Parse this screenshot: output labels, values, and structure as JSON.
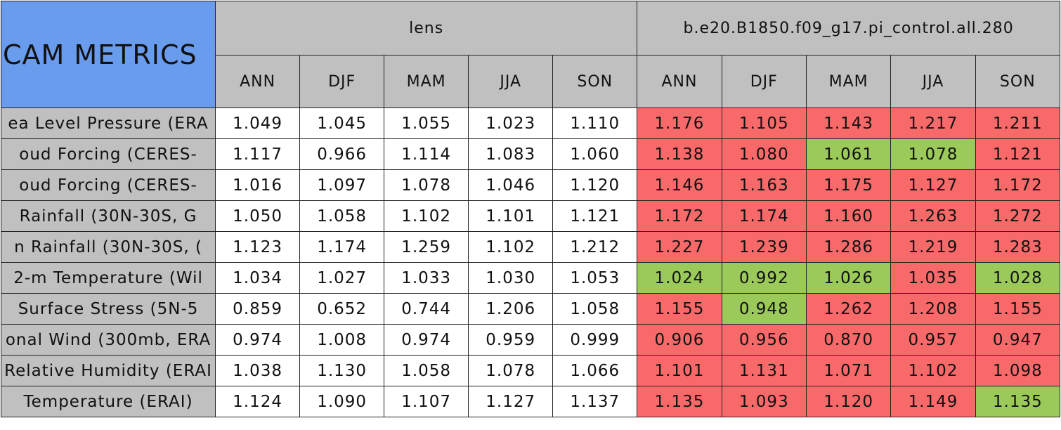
{
  "header": {
    "title": "CAM METRICS",
    "groups": [
      "lens",
      "b.e20.B1850.f09_g17.pi_control.all.280"
    ],
    "seasons": [
      "ANN",
      "DJF",
      "MAM",
      "JJA",
      "SON",
      "ANN",
      "DJF",
      "MAM",
      "JJA",
      "SON"
    ]
  },
  "table": {
    "rows": [
      {
        "label": "ea Level Pressure (ERA",
        "cells": [
          "1.049",
          "1.045",
          "1.055",
          "1.023",
          "1.110",
          "1.176",
          "1.105",
          "1.143",
          "1.217",
          "1.211"
        ],
        "fills": [
          null,
          null,
          null,
          null,
          null,
          "#f86a6a",
          "#f86a6a",
          "#f86a6a",
          "#f86a6a",
          "#f86a6a"
        ]
      },
      {
        "label": "oud Forcing (CERES-",
        "cells": [
          "1.117",
          "0.966",
          "1.114",
          "1.083",
          "1.060",
          "1.138",
          "1.080",
          "1.061",
          "1.078",
          "1.121"
        ],
        "fills": [
          null,
          null,
          null,
          null,
          null,
          "#f86a6a",
          "#f86a6a",
          "#9bca5a",
          "#9bca5a",
          "#f86a6a"
        ]
      },
      {
        "label": "oud Forcing (CERES-",
        "cells": [
          "1.016",
          "1.097",
          "1.078",
          "1.046",
          "1.120",
          "1.146",
          "1.163",
          "1.175",
          "1.127",
          "1.172"
        ],
        "fills": [
          null,
          null,
          null,
          null,
          null,
          "#f86a6a",
          "#f86a6a",
          "#f86a6a",
          "#f86a6a",
          "#f86a6a"
        ]
      },
      {
        "label": "Rainfall (30N-30S, G",
        "cells": [
          "1.050",
          "1.058",
          "1.102",
          "1.101",
          "1.121",
          "1.172",
          "1.174",
          "1.160",
          "1.263",
          "1.272"
        ],
        "fills": [
          null,
          null,
          null,
          null,
          null,
          "#f86a6a",
          "#f86a6a",
          "#f86a6a",
          "#f86a6a",
          "#f86a6a"
        ]
      },
      {
        "label": "n Rainfall (30N-30S, (",
        "cells": [
          "1.123",
          "1.174",
          "1.259",
          "1.102",
          "1.212",
          "1.227",
          "1.239",
          "1.286",
          "1.219",
          "1.283"
        ],
        "fills": [
          null,
          null,
          null,
          null,
          null,
          "#f86a6a",
          "#f86a6a",
          "#f86a6a",
          "#f86a6a",
          "#f86a6a"
        ]
      },
      {
        "label": "2-m Temperature (Wil",
        "cells": [
          "1.034",
          "1.027",
          "1.033",
          "1.030",
          "1.053",
          "1.024",
          "0.992",
          "1.026",
          "1.035",
          "1.028"
        ],
        "fills": [
          null,
          null,
          null,
          null,
          null,
          "#9bca5a",
          "#9bca5a",
          "#9bca5a",
          "#f86a6a",
          "#9bca5a"
        ]
      },
      {
        "label": "Surface Stress (5N-5",
        "cells": [
          "0.859",
          "0.652",
          "0.744",
          "1.206",
          "1.058",
          "1.155",
          "0.948",
          "1.262",
          "1.208",
          "1.155"
        ],
        "fills": [
          null,
          null,
          null,
          null,
          null,
          "#f86a6a",
          "#9bca5a",
          "#f86a6a",
          "#f86a6a",
          "#f86a6a"
        ]
      },
      {
        "label": "onal Wind (300mb, ERA",
        "cells": [
          "0.974",
          "1.008",
          "0.974",
          "0.959",
          "0.999",
          "0.906",
          "0.956",
          "0.870",
          "0.957",
          "0.947"
        ],
        "fills": [
          null,
          null,
          null,
          null,
          null,
          "#f86a6a",
          "#f86a6a",
          "#f86a6a",
          "#f86a6a",
          "#f86a6a"
        ]
      },
      {
        "label": "Relative Humidity (ERAI",
        "cells": [
          "1.038",
          "1.130",
          "1.058",
          "1.078",
          "1.066",
          "1.101",
          "1.131",
          "1.071",
          "1.102",
          "1.098"
        ],
        "fills": [
          null,
          null,
          null,
          null,
          null,
          "#f86a6a",
          "#f86a6a",
          "#f86a6a",
          "#f86a6a",
          "#f86a6a"
        ]
      },
      {
        "label": "Temperature (ERAI)",
        "cells": [
          "1.124",
          "1.090",
          "1.107",
          "1.127",
          "1.137",
          "1.135",
          "1.093",
          "1.120",
          "1.149",
          "1.135"
        ],
        "fills": [
          null,
          null,
          null,
          null,
          null,
          "#f86a6a",
          "#f86a6a",
          "#f86a6a",
          "#f86a6a",
          "#9bca5a"
        ]
      }
    ]
  }
}
